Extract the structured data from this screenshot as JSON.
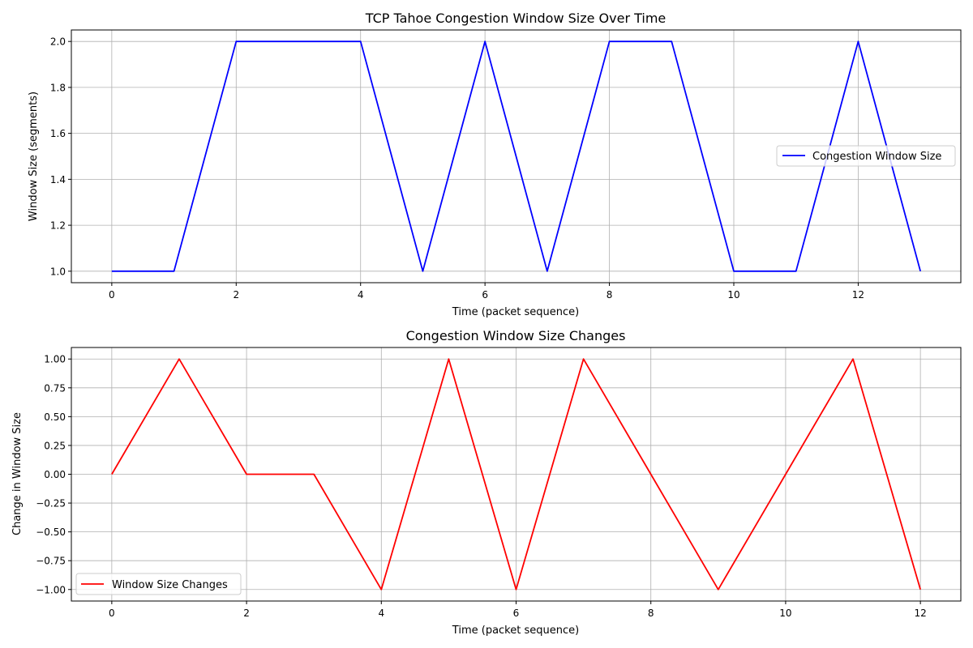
{
  "chart_data": [
    {
      "type": "line",
      "title": "TCP Tahoe Congestion Window Size Over Time",
      "xlabel": "Time (packet sequence)",
      "ylabel": "Window Size (segments)",
      "xlim": [
        -0.65,
        13.65
      ],
      "ylim": [
        0.95,
        2.05
      ],
      "xticks": [
        0,
        2,
        4,
        6,
        8,
        10,
        12
      ],
      "xtick_labels": [
        "0",
        "2",
        "4",
        "6",
        "8",
        "10",
        "12"
      ],
      "yticks": [
        1.0,
        1.2,
        1.4,
        1.6,
        1.8,
        2.0
      ],
      "ytick_labels": [
        "1.0",
        "1.2",
        "1.4",
        "1.6",
        "1.8",
        "2.0"
      ],
      "grid": true,
      "legend_position": "center-right",
      "x": [
        0,
        1,
        2,
        3,
        4,
        5,
        6,
        7,
        8,
        9,
        10,
        11,
        12,
        13
      ],
      "series": [
        {
          "name": "Congestion Window Size",
          "color": "#0000ff",
          "values": [
            1,
            1,
            2,
            2,
            2,
            1,
            2,
            1,
            2,
            2,
            1,
            1,
            2,
            1
          ]
        }
      ]
    },
    {
      "type": "line",
      "title": "Congestion Window Size Changes",
      "xlabel": "Time (packet sequence)",
      "ylabel": "Change in Window Size",
      "xlim": [
        -0.6,
        12.6
      ],
      "ylim": [
        -1.1,
        1.1
      ],
      "xticks": [
        0,
        2,
        4,
        6,
        8,
        10,
        12
      ],
      "xtick_labels": [
        "0",
        "2",
        "4",
        "6",
        "8",
        "10",
        "12"
      ],
      "yticks": [
        -1.0,
        -0.75,
        -0.5,
        -0.25,
        0.0,
        0.25,
        0.5,
        0.75,
        1.0
      ],
      "ytick_labels": [
        "−1.00",
        "−0.75",
        "−0.50",
        "−0.25",
        "0.00",
        "0.25",
        "0.50",
        "0.75",
        "1.00"
      ],
      "grid": true,
      "legend_position": "lower-left",
      "x": [
        0,
        1,
        2,
        3,
        4,
        5,
        6,
        7,
        8,
        9,
        10,
        11,
        12
      ],
      "series": [
        {
          "name": "Window Size Changes",
          "color": "#ff0000",
          "values": [
            0,
            1,
            0,
            0,
            -1,
            1,
            -1,
            1,
            0,
            -1,
            0,
            1,
            -1
          ]
        }
      ]
    }
  ]
}
